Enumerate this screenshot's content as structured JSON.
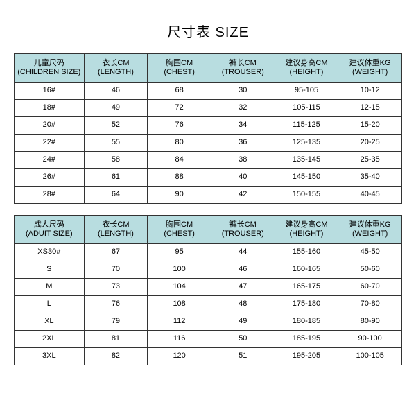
{
  "title": "尺寸表 SIZE",
  "tables": {
    "children": {
      "headers": [
        {
          "cn": "儿童尺码",
          "en": "(CHILDREN SIZE)"
        },
        {
          "cn": "衣长CM",
          "en": "(LENGTH)"
        },
        {
          "cn": "胸围CM",
          "en": "(CHEST)"
        },
        {
          "cn": "裤长CM",
          "en": "(TROUSER)"
        },
        {
          "cn": "建议身高CM",
          "en": "(HEIGHT)"
        },
        {
          "cn": "建议体重KG",
          "en": "(WEIGHT)"
        }
      ],
      "rows": [
        [
          "16#",
          "46",
          "68",
          "30",
          "95-105",
          "10-12"
        ],
        [
          "18#",
          "49",
          "72",
          "32",
          "105-115",
          "12-15"
        ],
        [
          "20#",
          "52",
          "76",
          "34",
          "115-125",
          "15-20"
        ],
        [
          "22#",
          "55",
          "80",
          "36",
          "125-135",
          "20-25"
        ],
        [
          "24#",
          "58",
          "84",
          "38",
          "135-145",
          "25-35"
        ],
        [
          "26#",
          "61",
          "88",
          "40",
          "145-150",
          "35-40"
        ],
        [
          "28#",
          "64",
          "90",
          "42",
          "150-155",
          "40-45"
        ]
      ]
    },
    "adult": {
      "headers": [
        {
          "cn": "成人尺码",
          "en": "(ADUIT SIZE)"
        },
        {
          "cn": "衣长CM",
          "en": "(LENGTH)"
        },
        {
          "cn": "胸围CM",
          "en": "(CHEST)"
        },
        {
          "cn": "裤长CM",
          "en": "(TROUSER)"
        },
        {
          "cn": "建议身高CM",
          "en": "(HEIGHT)"
        },
        {
          "cn": "建议体重KG",
          "en": "(WEIGHT)"
        }
      ],
      "rows": [
        [
          "XS30#",
          "67",
          "95",
          "44",
          "155-160",
          "45-50"
        ],
        [
          "S",
          "70",
          "100",
          "46",
          "160-165",
          "50-60"
        ],
        [
          "M",
          "73",
          "104",
          "47",
          "165-175",
          "60-70"
        ],
        [
          "L",
          "76",
          "108",
          "48",
          "175-180",
          "70-80"
        ],
        [
          "XL",
          "79",
          "112",
          "49",
          "180-185",
          "80-90"
        ],
        [
          "2XL",
          "81",
          "116",
          "50",
          "185-195",
          "90-100"
        ],
        [
          "3XL",
          "82",
          "120",
          "51",
          "195-205",
          "100-105"
        ]
      ]
    }
  },
  "style": {
    "header_bg": "#b8dde0",
    "border_color": "#333333",
    "title_fontsize": 20,
    "cell_fontsize": 11
  }
}
